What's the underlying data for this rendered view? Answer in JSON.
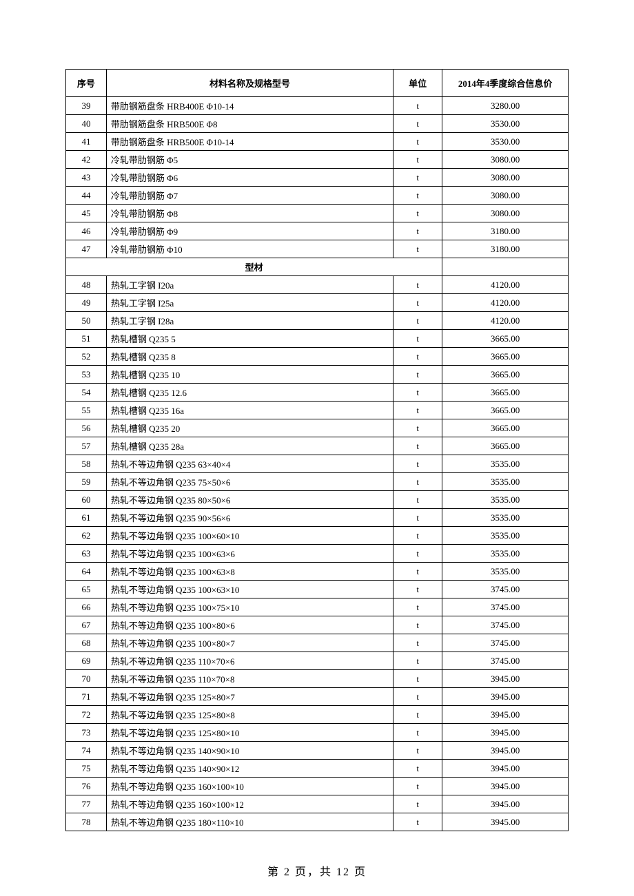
{
  "table": {
    "columns": {
      "seq": "序号",
      "name": "材料名称及规格型号",
      "unit": "单位",
      "price": "2014年4季度综合信息价"
    },
    "column_widths": {
      "seq": 58,
      "name": 410,
      "unit": 70,
      "price": 180
    },
    "header_fontsize": 13,
    "row_fontsize": 13,
    "border_color": "#000000",
    "background_color": "#ffffff",
    "rows": [
      {
        "seq": "39",
        "name": "带肋钢筋盘条 HRB400E Φ10-14",
        "unit": "t",
        "price": "3280.00"
      },
      {
        "seq": "40",
        "name": "带肋钢筋盘条 HRB500E Φ8",
        "unit": "t",
        "price": "3530.00"
      },
      {
        "seq": "41",
        "name": "带肋钢筋盘条 HRB500E Φ10-14",
        "unit": "t",
        "price": "3530.00"
      },
      {
        "seq": "42",
        "name": "冷轧带肋钢筋 Φ5",
        "unit": "t",
        "price": "3080.00"
      },
      {
        "seq": "43",
        "name": "冷轧带肋钢筋 Φ6",
        "unit": "t",
        "price": "3080.00"
      },
      {
        "seq": "44",
        "name": "冷轧带肋钢筋 Φ7",
        "unit": "t",
        "price": "3080.00"
      },
      {
        "seq": "45",
        "name": "冷轧带肋钢筋 Φ8",
        "unit": "t",
        "price": "3080.00"
      },
      {
        "seq": "46",
        "name": "冷轧带肋钢筋 Φ9",
        "unit": "t",
        "price": "3180.00"
      },
      {
        "seq": "47",
        "name": "冷轧带肋钢筋 Φ10",
        "unit": "t",
        "price": "3180.00"
      },
      {
        "section": "型材"
      },
      {
        "seq": "48",
        "name": "热轧工字钢 I20a",
        "unit": "t",
        "price": "4120.00"
      },
      {
        "seq": "49",
        "name": "热轧工字钢 I25a",
        "unit": "t",
        "price": "4120.00"
      },
      {
        "seq": "50",
        "name": "热轧工字钢 I28a",
        "unit": "t",
        "price": "4120.00"
      },
      {
        "seq": "51",
        "name": "热轧槽钢 Q235 5",
        "unit": "t",
        "price": "3665.00"
      },
      {
        "seq": "52",
        "name": "热轧槽钢 Q235 8",
        "unit": "t",
        "price": "3665.00"
      },
      {
        "seq": "53",
        "name": "热轧槽钢 Q235 10",
        "unit": "t",
        "price": "3665.00"
      },
      {
        "seq": "54",
        "name": "热轧槽钢 Q235 12.6",
        "unit": "t",
        "price": "3665.00"
      },
      {
        "seq": "55",
        "name": "热轧槽钢 Q235 16a",
        "unit": "t",
        "price": "3665.00"
      },
      {
        "seq": "56",
        "name": "热轧槽钢 Q235 20",
        "unit": "t",
        "price": "3665.00"
      },
      {
        "seq": "57",
        "name": "热轧槽钢 Q235 28a",
        "unit": "t",
        "price": "3665.00"
      },
      {
        "seq": "58",
        "name": "热轧不等边角钢 Q235 63×40×4",
        "unit": "t",
        "price": "3535.00"
      },
      {
        "seq": "59",
        "name": "热轧不等边角钢 Q235 75×50×6",
        "unit": "t",
        "price": "3535.00"
      },
      {
        "seq": "60",
        "name": "热轧不等边角钢 Q235 80×50×6",
        "unit": "t",
        "price": "3535.00"
      },
      {
        "seq": "61",
        "name": "热轧不等边角钢 Q235 90×56×6",
        "unit": "t",
        "price": "3535.00"
      },
      {
        "seq": "62",
        "name": "热轧不等边角钢 Q235 100×60×10",
        "unit": "t",
        "price": "3535.00"
      },
      {
        "seq": "63",
        "name": "热轧不等边角钢 Q235 100×63×6",
        "unit": "t",
        "price": "3535.00"
      },
      {
        "seq": "64",
        "name": "热轧不等边角钢 Q235 100×63×8",
        "unit": "t",
        "price": "3535.00"
      },
      {
        "seq": "65",
        "name": "热轧不等边角钢 Q235 100×63×10",
        "unit": "t",
        "price": "3745.00"
      },
      {
        "seq": "66",
        "name": "热轧不等边角钢 Q235 100×75×10",
        "unit": "t",
        "price": "3745.00"
      },
      {
        "seq": "67",
        "name": "热轧不等边角钢 Q235 100×80×6",
        "unit": "t",
        "price": "3745.00"
      },
      {
        "seq": "68",
        "name": "热轧不等边角钢 Q235 100×80×7",
        "unit": "t",
        "price": "3745.00"
      },
      {
        "seq": "69",
        "name": "热轧不等边角钢 Q235 110×70×6",
        "unit": "t",
        "price": "3745.00"
      },
      {
        "seq": "70",
        "name": "热轧不等边角钢 Q235 110×70×8",
        "unit": "t",
        "price": "3945.00"
      },
      {
        "seq": "71",
        "name": "热轧不等边角钢 Q235 125×80×7",
        "unit": "t",
        "price": "3945.00"
      },
      {
        "seq": "72",
        "name": "热轧不等边角钢 Q235 125×80×8",
        "unit": "t",
        "price": "3945.00"
      },
      {
        "seq": "73",
        "name": "热轧不等边角钢 Q235 125×80×10",
        "unit": "t",
        "price": "3945.00"
      },
      {
        "seq": "74",
        "name": "热轧不等边角钢 Q235 140×90×10",
        "unit": "t",
        "price": "3945.00"
      },
      {
        "seq": "75",
        "name": "热轧不等边角钢 Q235 140×90×12",
        "unit": "t",
        "price": "3945.00"
      },
      {
        "seq": "76",
        "name": "热轧不等边角钢 Q235 160×100×10",
        "unit": "t",
        "price": "3945.00"
      },
      {
        "seq": "77",
        "name": "热轧不等边角钢 Q235 160×100×12",
        "unit": "t",
        "price": "3945.00"
      },
      {
        "seq": "78",
        "name": "热轧不等边角钢 Q235 180×110×10",
        "unit": "t",
        "price": "3945.00"
      }
    ]
  },
  "footer": {
    "text": "第 2 页，共 12 页",
    "fontsize": 16
  }
}
